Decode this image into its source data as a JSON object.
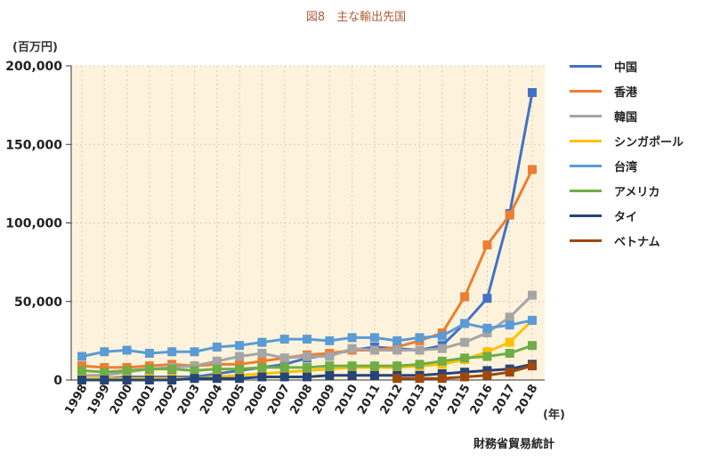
{
  "title": "図8　主な輸出先国",
  "source": "財務省貿易統計",
  "chart_data": {
    "type": "line",
    "ylabel": "(百万円)",
    "xlabel": "(年)",
    "ylim": [
      0,
      200000
    ],
    "yticks": [
      "0",
      "50,000",
      "100,000",
      "150,000",
      "200,000"
    ],
    "ytick_values": [
      0,
      50000,
      100000,
      150000,
      200000
    ],
    "grid": true,
    "legend": "right",
    "background": "#fdf3dc",
    "x": [
      "1998",
      "1999",
      "2000",
      "2001",
      "2002",
      "2003",
      "2004",
      "2005",
      "2006",
      "2007",
      "2008",
      "2009",
      "2010",
      "2011",
      "2012",
      "2013",
      "2014",
      "2015",
      "2016",
      "2017",
      "2018"
    ],
    "series": [
      {
        "name": "中国",
        "color": "#4472c4",
        "values": [
          1000,
          1000,
          2000,
          2000,
          2000,
          2000,
          4000,
          6000,
          8000,
          10000,
          14000,
          16000,
          19000,
          21000,
          20000,
          19000,
          22000,
          36000,
          52000,
          106000,
          183000
        ]
      },
      {
        "name": "香港",
        "color": "#ed7d31",
        "values": [
          9000,
          8000,
          8000,
          9000,
          10000,
          9000,
          10000,
          10000,
          12000,
          14000,
          16000,
          17000,
          19000,
          19000,
          21000,
          25000,
          30000,
          53000,
          86000,
          105000,
          134000
        ]
      },
      {
        "name": "韓国",
        "color": "#a5a5a5",
        "values": [
          3000,
          3000,
          5000,
          7000,
          8000,
          9000,
          12000,
          15000,
          17000,
          14000,
          15000,
          15000,
          20000,
          19000,
          19000,
          19000,
          20000,
          24000,
          30000,
          40000,
          54000
        ]
      },
      {
        "name": "シンガポール",
        "color": "#ffc000",
        "values": [
          1000,
          1000,
          1000,
          1000,
          1000,
          1000,
          2000,
          3000,
          4000,
          5000,
          6000,
          7000,
          8000,
          8000,
          8000,
          9000,
          10000,
          13000,
          18000,
          24000,
          38000
        ]
      },
      {
        "name": "台湾",
        "color": "#5b9bd5",
        "values": [
          15000,
          18000,
          19000,
          17000,
          18000,
          18000,
          21000,
          22000,
          24000,
          26000,
          26000,
          25000,
          27000,
          27000,
          25000,
          27000,
          28000,
          36000,
          33000,
          35000,
          38000
        ]
      },
      {
        "name": "アメリカ",
        "color": "#70ad47",
        "values": [
          6000,
          5000,
          6000,
          7000,
          7000,
          6000,
          7000,
          7000,
          8000,
          8000,
          8000,
          9000,
          9000,
          9000,
          9000,
          10000,
          12000,
          14000,
          15000,
          17000,
          22000
        ]
      },
      {
        "name": "タイ",
        "color": "#264478",
        "values": [
          0,
          0,
          0,
          0,
          0,
          1000,
          1000,
          1000,
          2000,
          2000,
          2000,
          3000,
          3000,
          3000,
          3000,
          3000,
          4000,
          5000,
          6000,
          7000,
          10000
        ]
      },
      {
        "name": "ベトナム",
        "color": "#9e480e",
        "values": [
          null,
          null,
          null,
          null,
          null,
          null,
          null,
          null,
          null,
          null,
          null,
          null,
          null,
          null,
          1000,
          1000,
          1000,
          2000,
          3000,
          5000,
          9000
        ]
      }
    ]
  }
}
